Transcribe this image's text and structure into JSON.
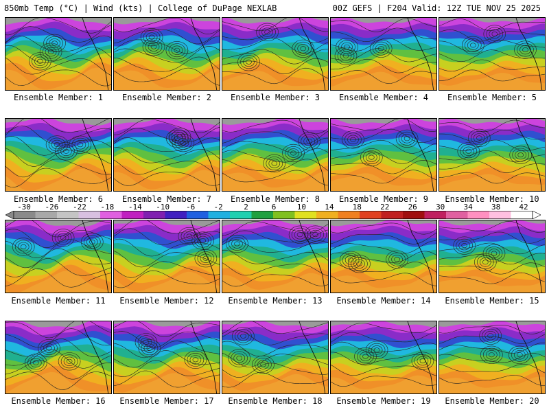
{
  "header": {
    "left": "850mb Temp (°C) | Wind (kts) | College of DuPage NEXLAB",
    "right": "00Z GEFS | F204 Valid: 12Z TUE NOV 25 2025"
  },
  "colorbar": {
    "labels": [
      "-30",
      "-26",
      "-22",
      "-18",
      "-14",
      "-10",
      "-6",
      "-2",
      "2",
      "6",
      "10",
      "14",
      "18",
      "22",
      "26",
      "30",
      "34",
      "38",
      "42"
    ],
    "colors": [
      "#8a8a8a",
      "#a8a8a8",
      "#c4c4c4",
      "#d8c0e0",
      "#e060e0",
      "#c020c0",
      "#8020b0",
      "#4020c0",
      "#2060e0",
      "#20b0e0",
      "#20d0b0",
      "#20a040",
      "#80c020",
      "#e0e020",
      "#f0b020",
      "#f08020",
      "#e04020",
      "#c02020",
      "#a01010",
      "#c02060",
      "#e060a0",
      "#ff90c0",
      "#ffc0e0",
      "#ffffff"
    ]
  },
  "members": [
    {
      "caption": "Ensemble Member: 1"
    },
    {
      "caption": "Ensemble Member: 2"
    },
    {
      "caption": "Ensemble Member: 3"
    },
    {
      "caption": "Ensemble Member: 4"
    },
    {
      "caption": "Ensemble Member: 5"
    },
    {
      "caption": "Ensemble Member: 6"
    },
    {
      "caption": "Ensemble Member: 7"
    },
    {
      "caption": "Ensemble Member: 8"
    },
    {
      "caption": "Ensemble Member: 9"
    },
    {
      "caption": "Ensemble Member: 10"
    },
    {
      "caption": "Ensemble Member: 11"
    },
    {
      "caption": "Ensemble Member: 12"
    },
    {
      "caption": "Ensemble Member: 13"
    },
    {
      "caption": "Ensemble Member: 14"
    },
    {
      "caption": "Ensemble Member: 15"
    },
    {
      "caption": "Ensemble Member: 16"
    },
    {
      "caption": "Ensemble Member: 17"
    },
    {
      "caption": "Ensemble Member: 18"
    },
    {
      "caption": "Ensemble Member: 19"
    },
    {
      "caption": "Ensemble Member: 20"
    }
  ]
}
